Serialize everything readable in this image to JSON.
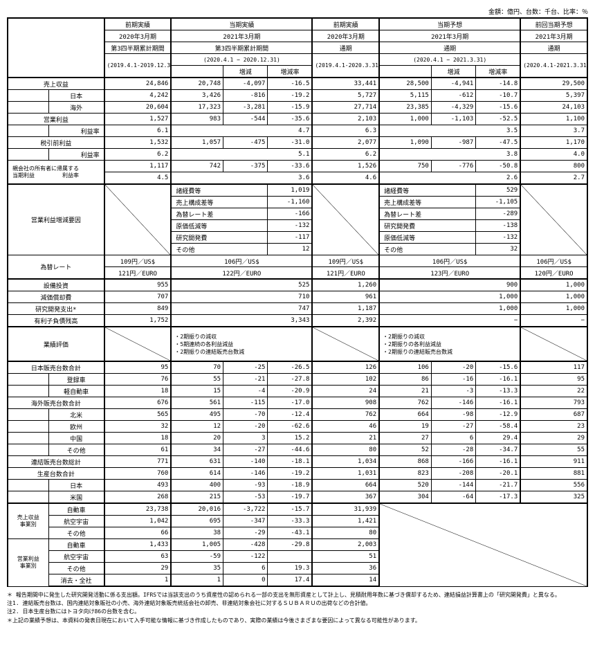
{
  "unit_note": "金額：億円、台数：千台、比率：％",
  "headers": {
    "col1": {
      "l1": "前期実績",
      "l2": "2020年3月期",
      "l3": "第3四半期累計期間",
      "range": "(2019.4.1-2019.12.31)"
    },
    "col2": {
      "l1": "当期実績",
      "l2": "2021年3月期",
      "l3": "第3四半期累計期間",
      "range": "(2020.4.1 − 2020.12.31)",
      "zg": "増減",
      "zgr": "増減率"
    },
    "col3": {
      "l1": "前期実績",
      "l2": "2020年3月期",
      "l3": "通期",
      "range": "(2019.4.1-2020.3.31)"
    },
    "col4": {
      "l1": "当期予想",
      "l2": "2021年3月期",
      "l3": "通期",
      "range": "(2020.4.1 − 2021.3.31)",
      "zg": "増減",
      "zgr": "増減率"
    },
    "col5": {
      "l1": "前回当期予想",
      "l2": "2021年3月期",
      "l3": "通期",
      "range": "(2020.4.1-2021.3.31)"
    }
  },
  "rows": {
    "uriage": {
      "label": "売上収益",
      "c1": "24,846",
      "c2a": "20,748",
      "c2b": "-4,097",
      "c2c": "-16.5",
      "c3": "33,441",
      "c4a": "28,500",
      "c4b": "-4,941",
      "c4c": "-14.8",
      "c5": "29,500"
    },
    "japan": {
      "label": "日本",
      "c1": "4,242",
      "c2a": "3,426",
      "c2b": "-816",
      "c2c": "-19.2",
      "c3": "5,727",
      "c4a": "5,115",
      "c4b": "-612",
      "c4c": "-10.7",
      "c5": "5,397"
    },
    "kaigai": {
      "label": "海外",
      "c1": "20,604",
      "c2a": "17,323",
      "c2b": "-3,281",
      "c2c": "-15.9",
      "c3": "27,714",
      "c4a": "23,385",
      "c4b": "-4,329",
      "c4c": "-15.6",
      "c5": "24,103"
    },
    "eigyo": {
      "label": "営業利益",
      "c1": "1,527",
      "c2a": "983",
      "c2b": "-544",
      "c2c": "-35.6",
      "c3": "2,103",
      "c4a": "1,000",
      "c4b": "-1,103",
      "c4c": "-52.5",
      "c5": "1,100"
    },
    "eigyo_r": {
      "label": "利益率",
      "c1": "6.1",
      "c2a": "4.7",
      "c3": "6.3",
      "c4a": "3.5",
      "c5": "3.7"
    },
    "zeibiki": {
      "label": "税引前利益",
      "c1": "1,532",
      "c2a": "1,057",
      "c2b": "-475",
      "c2c": "-31.0",
      "c3": "2,077",
      "c4a": "1,090",
      "c4b": "-987",
      "c4c": "-47.5",
      "c5": "1,170"
    },
    "zeibiki_r": {
      "label": "利益率",
      "c1": "6.2",
      "c2a": "5.1",
      "c3": "6.2",
      "c4a": "3.8",
      "c5": "4.0"
    },
    "oya": {
      "l1": "親会社の所有者に帰属する",
      "l2": "当期利益",
      "c1": "1,117",
      "c2a": "742",
      "c2b": "-375",
      "c2c": "-33.6",
      "c3": "1,526",
      "c4a": "750",
      "c4b": "-776",
      "c4c": "-50.8",
      "c5": "800"
    },
    "oya_r": {
      "label": "利益率",
      "c1": "4.5",
      "c2a": "3.6",
      "c3": "4.6",
      "c4a": "2.6",
      "c5": "2.7"
    },
    "youin_label": "営業利益増減要因",
    "youin_a": [
      {
        "k": "諸経費等",
        "v": "1,019"
      },
      {
        "k": "売上構成差等",
        "v": "-1,160"
      },
      {
        "k": "為替レート差",
        "v": "-166"
      },
      {
        "k": "原価低減等",
        "v": "-132"
      },
      {
        "k": "研究開発費",
        "v": "-117"
      },
      {
        "k": "その他",
        "v": "12"
      }
    ],
    "youin_b": [
      {
        "k": "諸経費等",
        "v": "529"
      },
      {
        "k": "売上構成差等",
        "v": "-1,105"
      },
      {
        "k": "為替レート差",
        "v": "-289"
      },
      {
        "k": "研究開発費",
        "v": "-138"
      },
      {
        "k": "原価低減等",
        "v": "-132"
      },
      {
        "k": "その他",
        "v": "32"
      }
    ],
    "kawase": {
      "label": "為替レート",
      "c1a": "109円／US$",
      "c1b": "121円／EURO",
      "c2a": "106円／US$",
      "c2b": "122円／EURO",
      "c3a": "109円／US$",
      "c3b": "121円／EURO",
      "c4a": "106円／US$",
      "c4b": "123円／EURO",
      "c5a": "106円／US$",
      "c5b": "120円／EURO"
    },
    "setsubi": {
      "label": "設備投資",
      "c1": "955",
      "c2": "525",
      "c3": "1,260",
      "c4": "900",
      "c5": "1,000"
    },
    "genka": {
      "label": "減価償却費",
      "c1": "707",
      "c2": "710",
      "c3": "961",
      "c4": "1,000",
      "c5": "1,000"
    },
    "kenkyu": {
      "label": "研究開発支出*",
      "c1": "849",
      "c2": "747",
      "c3": "1,187",
      "c4": "1,000",
      "c5": "1,000"
    },
    "yuurishi": {
      "label": "有利子負債残高",
      "c1": "1,752",
      "c2": "3,343",
      "c3": "2,392",
      "c4": "−",
      "c5": "−"
    },
    "gyoseki_label": "業績評価",
    "gyoseki_a": "・2期振りの減収\n・5期連続の各利益減益\n・2期振りの連結販売台数減",
    "gyoseki_b": "・2期振りの減収\n・2期振りの各利益減益\n・2期振りの連結販売台数減",
    "jp_total": {
      "label": "日本販売台数合計",
      "c1": "95",
      "c2a": "70",
      "c2b": "-25",
      "c2c": "-26.5",
      "c3": "126",
      "c4a": "106",
      "c4b": "-20",
      "c4c": "-15.6",
      "c5": "117"
    },
    "touroku": {
      "label": "登録車",
      "c1": "76",
      "c2a": "55",
      "c2b": "-21",
      "c2c": "-27.8",
      "c3": "102",
      "c4a": "86",
      "c4b": "-16",
      "c4c": "-16.1",
      "c5": "95"
    },
    "kei": {
      "label": "軽自動車",
      "c1": "18",
      "c2a": "15",
      "c2b": "-4",
      "c2c": "-20.9",
      "c3": "24",
      "c4a": "21",
      "c4b": "-3",
      "c4c": "-13.3",
      "c5": "22"
    },
    "os_total": {
      "label": "海外販売台数合計",
      "c1": "676",
      "c2a": "561",
      "c2b": "-115",
      "c2c": "-17.0",
      "c3": "908",
      "c4a": "762",
      "c4b": "-146",
      "c4c": "-16.1",
      "c5": "793"
    },
    "hokubei": {
      "label": "北米",
      "c1": "565",
      "c2a": "495",
      "c2b": "-70",
      "c2c": "-12.4",
      "c3": "762",
      "c4a": "664",
      "c4b": "-98",
      "c4c": "-12.9",
      "c5": "687"
    },
    "oushu": {
      "label": "欧州",
      "c1": "32",
      "c2a": "12",
      "c2b": "-20",
      "c2c": "-62.6",
      "c3": "46",
      "c4a": "19",
      "c4b": "-27",
      "c4c": "-58.4",
      "c5": "23"
    },
    "china": {
      "label": "中国",
      "c1": "18",
      "c2a": "20",
      "c2b": "3",
      "c2c": "15.2",
      "c3": "21",
      "c4a": "27",
      "c4b": "6",
      "c4c": "29.4",
      "c5": "29"
    },
    "sonota": {
      "label": "その他",
      "c1": "61",
      "c2a": "34",
      "c2b": "-27",
      "c2c": "-44.6",
      "c3": "80",
      "c4a": "52",
      "c4b": "-28",
      "c4c": "-34.7",
      "c5": "55"
    },
    "renketsu": {
      "label": "連結販売台数総計",
      "c1": "771",
      "c2a": "631",
      "c2b": "-140",
      "c2c": "-18.1",
      "c3": "1,034",
      "c4a": "868",
      "c4b": "-166",
      "c4c": "-16.1",
      "c5": "911"
    },
    "seisan": {
      "label": "生産台数合計",
      "c1": "760",
      "c2a": "614",
      "c2b": "-146",
      "c2c": "-19.2",
      "c3": "1,031",
      "c4a": "823",
      "c4b": "-208",
      "c4c": "-20.1",
      "c5": "881"
    },
    "s_japan": {
      "label": "日本",
      "c1": "493",
      "c2a": "400",
      "c2b": "-93",
      "c2c": "-18.9",
      "c3": "664",
      "c4a": "520",
      "c4b": "-144",
      "c4c": "-21.7",
      "c5": "556"
    },
    "s_usa": {
      "label": "米国",
      "c1": "268",
      "c2a": "215",
      "c2b": "-53",
      "c2c": "-19.7",
      "c3": "367",
      "c4a": "304",
      "c4b": "-64",
      "c4c": "-17.3",
      "c5": "325"
    },
    "seg_u_label": "売上収益\n事業別",
    "seg_e_label": "営業利益\n事業別",
    "seg_auto_u": {
      "label": "自動車",
      "c1": "23,738",
      "c2a": "20,016",
      "c2b": "-3,722",
      "c2c": "-15.7",
      "c3": "31,939"
    },
    "seg_aero_u": {
      "label": "航空宇宙",
      "c1": "1,042",
      "c2a": "695",
      "c2b": "-347",
      "c2c": "-33.3",
      "c3": "1,421"
    },
    "seg_other_u": {
      "label": "その他",
      "c1": "66",
      "c2a": "38",
      "c2b": "-29",
      "c2c": "-43.1",
      "c3": "80"
    },
    "seg_auto_e": {
      "label": "自動車",
      "c1": "1,433",
      "c2a": "1,005",
      "c2b": "-428",
      "c2c": "-29.8",
      "c3": "2,003"
    },
    "seg_aero_e": {
      "label": "航空宇宙",
      "c1": "63",
      "c2a": "-59",
      "c2b": "-122",
      "c2c": "",
      "c3": "51"
    },
    "seg_other_e": {
      "label": "その他",
      "c1": "29",
      "c2a": "35",
      "c2b": "6",
      "c2c": "19.3",
      "c3": "36"
    },
    "seg_elim": {
      "label": "消去・全社",
      "c1": "1",
      "c2a": "1",
      "c2b": "0",
      "c2c": "17.4",
      "c3": "14"
    }
  },
  "footnotes": [
    "＊ 報告期間中に発生した研究開発活動に係る支出額。IFRSでは当該支出のうち資産性の認められる一部の支出を無形資産として計上し、見積耐用年数に基づき償却するため、連結損益計算書上の「研究開発費」と異なる。",
    "注1. 連結販売台数は、国内連結対象販社の小売、海外連結対象販売統括会社の卸売、非連結対象会社に対するＳＵＢＡＲＵの出荷などの合計値。",
    "注2. 日本生産台数にはトヨタ向け86の台数を含む。",
    "＊上記の業績予想は、本資料の発表日現在において入手可能な情報に基づき作成したものであり、実際の業績は今後さまざまな要因によって異なる可能性があります。"
  ]
}
